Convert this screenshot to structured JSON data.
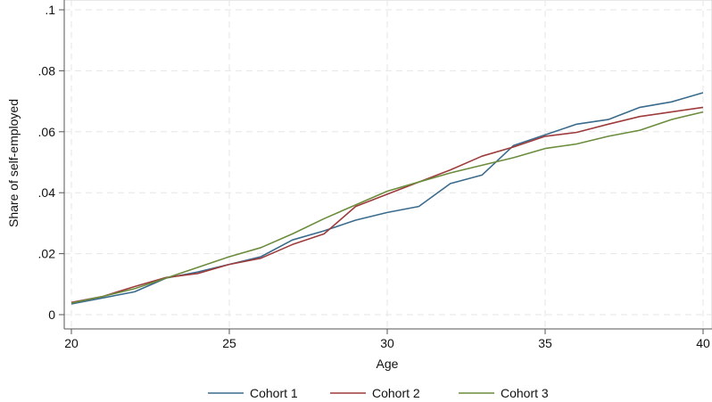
{
  "chart_data": {
    "type": "line",
    "title": "",
    "xlabel": "Age",
    "ylabel": "Share of self-employed",
    "xlim": [
      20,
      40
    ],
    "ylim": [
      0,
      0.1
    ],
    "x_ticks": [
      20,
      25,
      30,
      35,
      40
    ],
    "x_tick_labels": [
      "20",
      "25",
      "30",
      "35",
      "40"
    ],
    "y_ticks": [
      0,
      0.02,
      0.04,
      0.06,
      0.08,
      0.1
    ],
    "y_tick_labels": [
      "0",
      ".02",
      ".04",
      ".06",
      ".08",
      ".1"
    ],
    "grid": true,
    "legend_position": "bottom",
    "x": [
      20,
      21,
      22,
      23,
      24,
      25,
      26,
      27,
      28,
      29,
      30,
      31,
      32,
      33,
      34,
      35,
      36,
      37,
      38,
      39,
      40
    ],
    "series": [
      {
        "name": "Cohort 1",
        "color": "#3a6b8c",
        "values": [
          0.0035,
          0.0055,
          0.0075,
          0.012,
          0.014,
          0.0165,
          0.019,
          0.0245,
          0.0275,
          0.031,
          0.0335,
          0.0355,
          0.043,
          0.0458,
          0.0555,
          0.059,
          0.0625,
          0.064,
          0.068,
          0.0698,
          0.0728
        ]
      },
      {
        "name": "Cohort 2",
        "color": "#9e3c3c",
        "values": [
          0.004,
          0.006,
          0.0092,
          0.0122,
          0.0135,
          0.0165,
          0.0185,
          0.023,
          0.0265,
          0.0355,
          0.0395,
          0.0435,
          0.0475,
          0.052,
          0.055,
          0.0585,
          0.0598,
          0.0625,
          0.065,
          0.0665,
          0.068
        ]
      },
      {
        "name": "Cohort 3",
        "color": "#6b8c3c",
        "values": [
          0.0038,
          0.006,
          0.0085,
          0.012,
          0.0155,
          0.019,
          0.022,
          0.0265,
          0.0315,
          0.036,
          0.0405,
          0.0435,
          0.0465,
          0.049,
          0.0515,
          0.0545,
          0.056,
          0.0585,
          0.0605,
          0.064,
          0.0665
        ]
      }
    ]
  }
}
